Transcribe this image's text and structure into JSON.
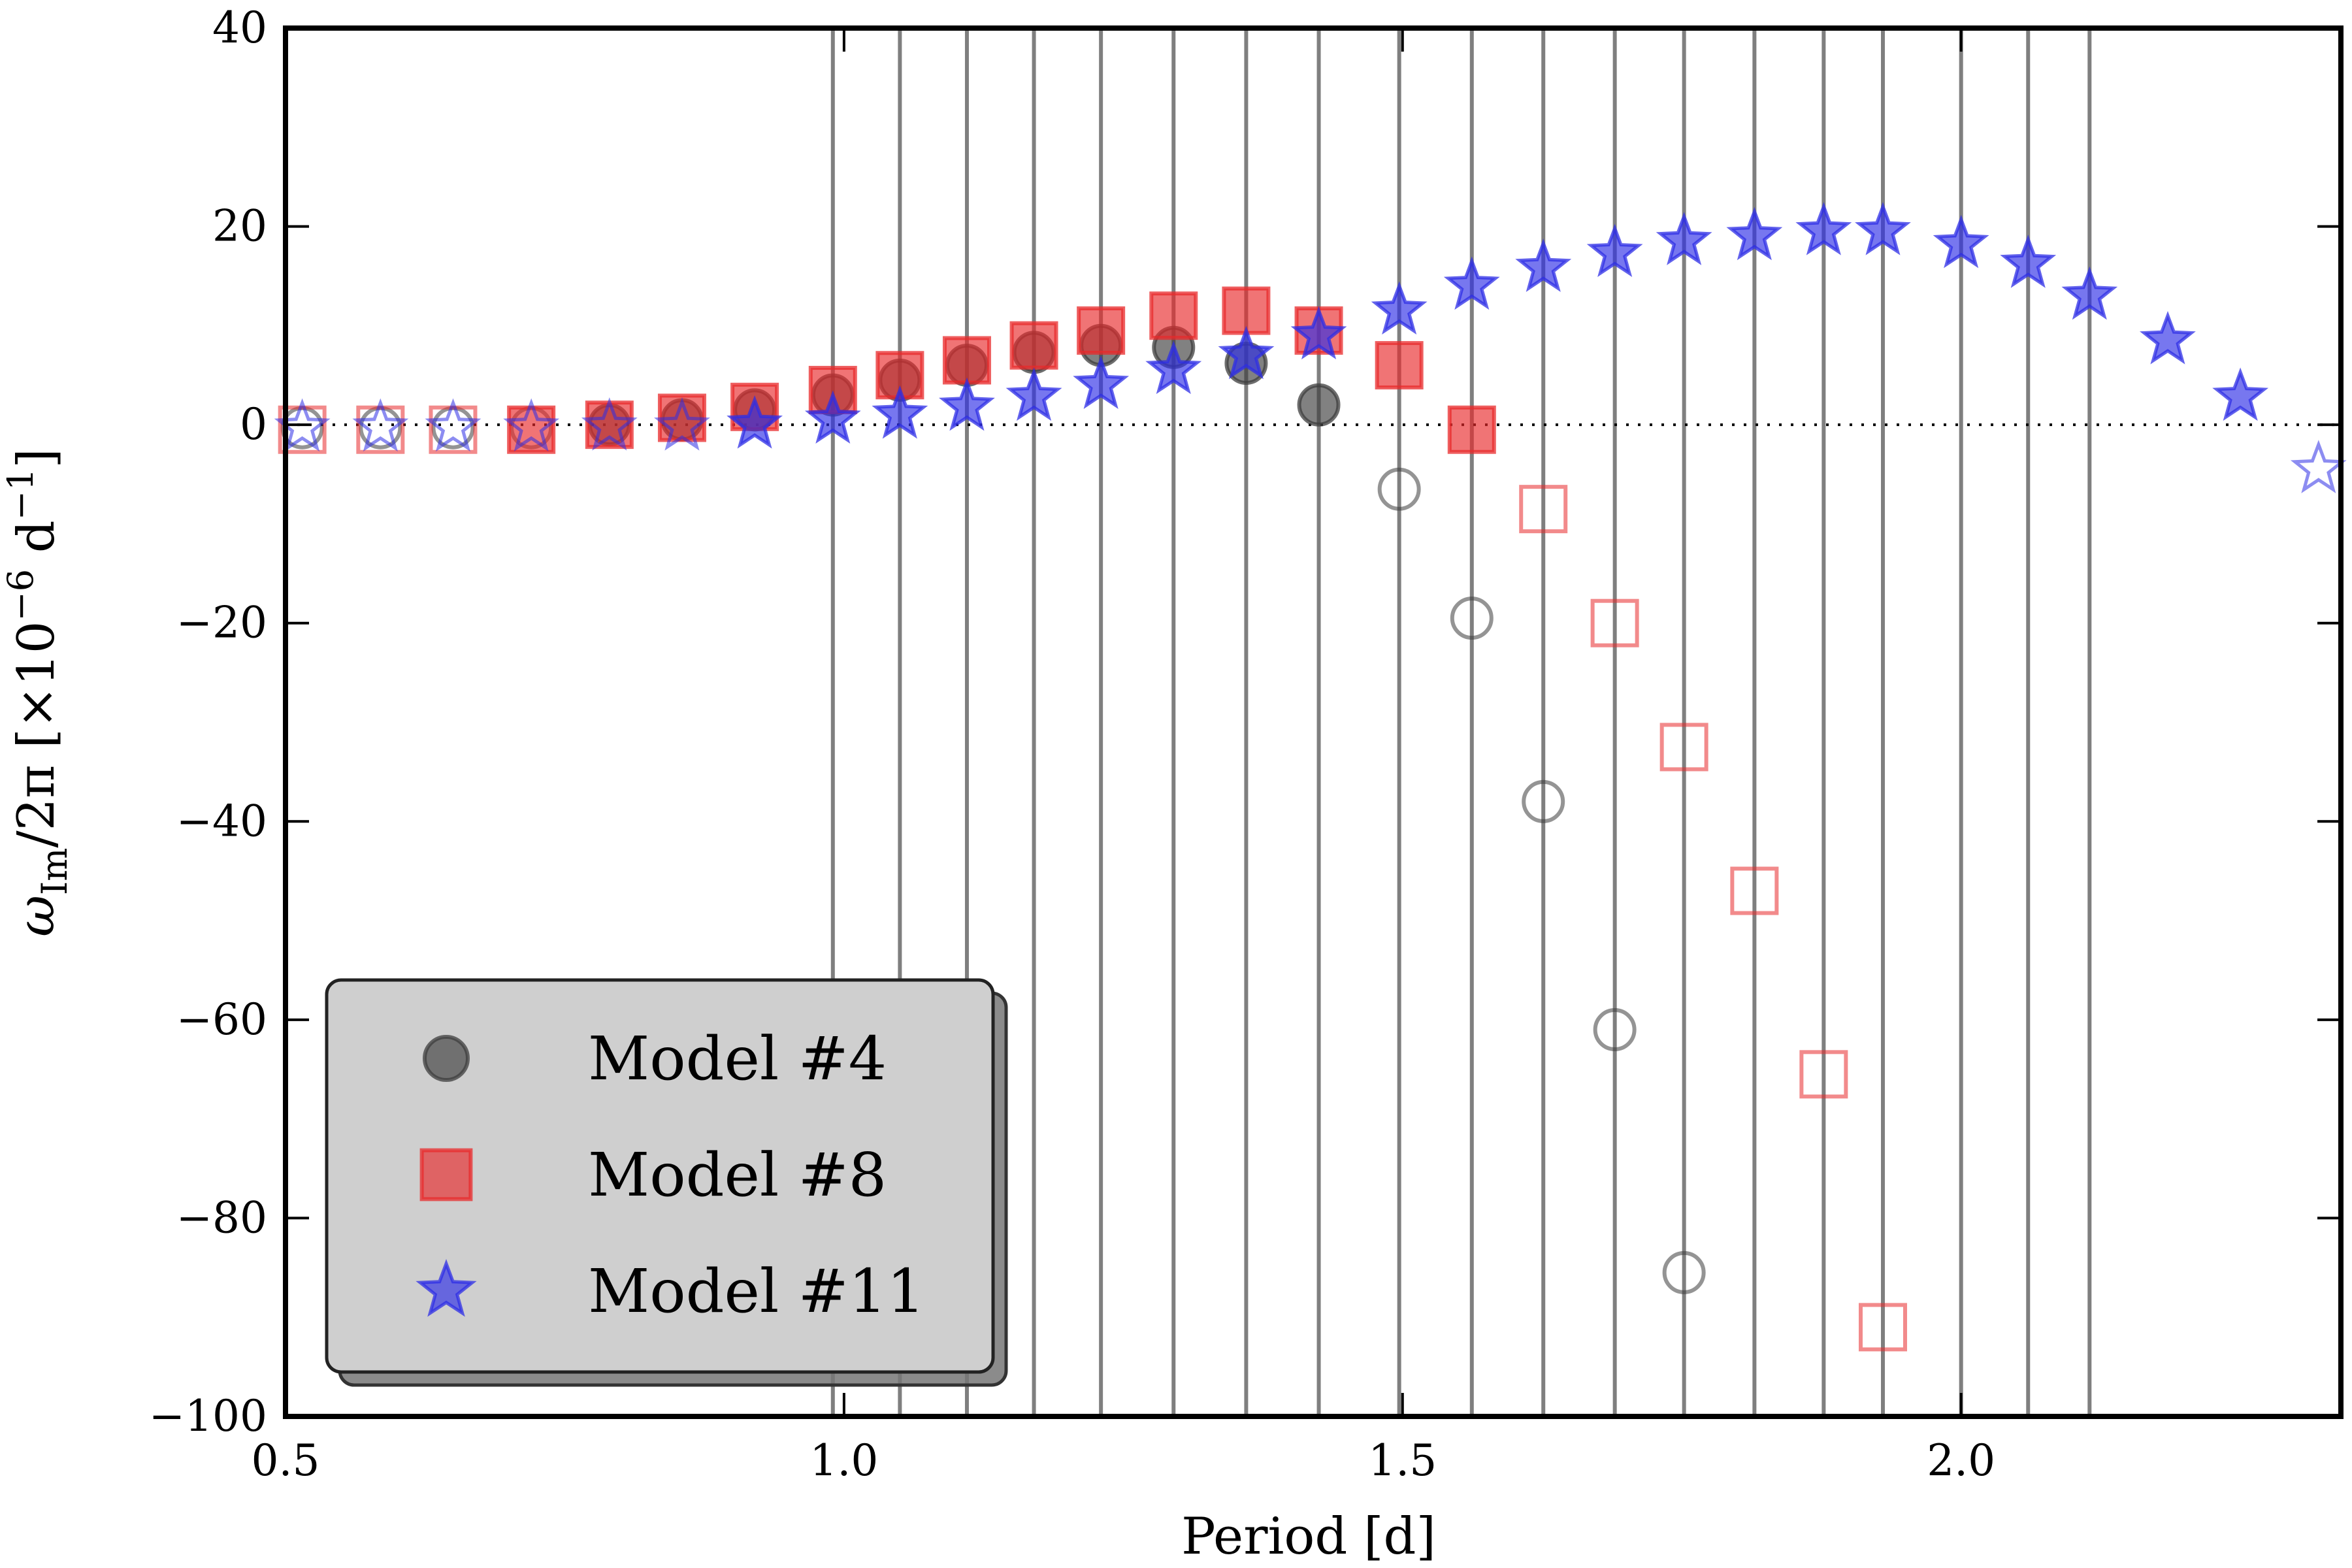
{
  "chart_data": {
    "type": "scatter",
    "title": "",
    "xlabel": "Period [d]",
    "ylabel": {
      "main": "ω",
      "sub": "Im",
      "after": "/2π [×10",
      "exp": "−6",
      "unit": " d",
      "unit_exp": "−1",
      "close": "]"
    },
    "xlim": [
      0.5,
      2.34
    ],
    "ylim": [
      -100,
      40
    ],
    "xticks": [
      {
        "value": 0.5,
        "label": "0.5"
      },
      {
        "value": 1.0,
        "label": "1.0"
      },
      {
        "value": 1.5,
        "label": "1.5"
      },
      {
        "value": 2.0,
        "label": "2.0"
      }
    ],
    "yticks": [
      {
        "value": 40,
        "label": "40"
      },
      {
        "value": 20,
        "label": "20"
      },
      {
        "value": 0,
        "label": "0"
      },
      {
        "value": -20,
        "label": "−20"
      },
      {
        "value": -40,
        "label": "−40"
      },
      {
        "value": -60,
        "label": "−60"
      },
      {
        "value": -80,
        "label": "−80"
      },
      {
        "value": -100,
        "label": "−100"
      }
    ],
    "zero_line": true,
    "observed_periods": [
      0.99,
      1.05,
      1.11,
      1.17,
      1.23,
      1.295,
      1.36,
      1.425,
      1.497,
      1.562,
      1.626,
      1.69,
      1.752,
      1.815,
      1.877,
      1.93,
      2.0,
      2.06,
      2.115
    ],
    "legend": {
      "position": "lower-left",
      "entries": [
        {
          "label": "Model #4",
          "marker": "circle",
          "color": "#3d3d3d"
        },
        {
          "label": "Model #8",
          "marker": "square",
          "color": "#e8292b"
        },
        {
          "label": "Model #11",
          "marker": "star",
          "color": "#2e2ee6"
        }
      ]
    },
    "series": [
      {
        "name": "Model #4",
        "marker": "circle",
        "color": "#3d3d3d",
        "points": [
          {
            "x": 0.515,
            "y": -0.3,
            "filled": false
          },
          {
            "x": 0.585,
            "y": -0.3,
            "filled": false
          },
          {
            "x": 0.65,
            "y": -0.3,
            "filled": false
          },
          {
            "x": 0.72,
            "y": -0.3,
            "filled": false
          },
          {
            "x": 0.79,
            "y": 0.0,
            "filled": true
          },
          {
            "x": 0.855,
            "y": 0.5,
            "filled": true
          },
          {
            "x": 0.92,
            "y": 1.5,
            "filled": true
          },
          {
            "x": 0.99,
            "y": 3.0,
            "filled": true
          },
          {
            "x": 1.05,
            "y": 4.5,
            "filled": true
          },
          {
            "x": 1.11,
            "y": 6.0,
            "filled": true
          },
          {
            "x": 1.17,
            "y": 7.3,
            "filled": true
          },
          {
            "x": 1.23,
            "y": 8.0,
            "filled": true
          },
          {
            "x": 1.295,
            "y": 7.8,
            "filled": true
          },
          {
            "x": 1.36,
            "y": 6.2,
            "filled": true
          },
          {
            "x": 1.425,
            "y": 2.0,
            "filled": true
          },
          {
            "x": 1.497,
            "y": -6.5,
            "filled": false
          },
          {
            "x": 1.562,
            "y": -19.5,
            "filled": false
          },
          {
            "x": 1.626,
            "y": -38.0,
            "filled": false
          },
          {
            "x": 1.69,
            "y": -61.0,
            "filled": false
          },
          {
            "x": 1.752,
            "y": -85.5,
            "filled": false
          }
        ]
      },
      {
        "name": "Model #8",
        "marker": "square",
        "color": "#e8292b",
        "points": [
          {
            "x": 0.515,
            "y": -0.5,
            "filled": false
          },
          {
            "x": 0.585,
            "y": -0.5,
            "filled": false
          },
          {
            "x": 0.65,
            "y": -0.5,
            "filled": false
          },
          {
            "x": 0.72,
            "y": -0.5,
            "filled": true
          },
          {
            "x": 0.79,
            "y": 0.0,
            "filled": true
          },
          {
            "x": 0.855,
            "y": 0.7,
            "filled": true
          },
          {
            "x": 0.92,
            "y": 1.8,
            "filled": true
          },
          {
            "x": 0.99,
            "y": 3.5,
            "filled": true
          },
          {
            "x": 1.05,
            "y": 5.0,
            "filled": true
          },
          {
            "x": 1.11,
            "y": 6.5,
            "filled": true
          },
          {
            "x": 1.17,
            "y": 8.0,
            "filled": true
          },
          {
            "x": 1.23,
            "y": 9.5,
            "filled": true
          },
          {
            "x": 1.295,
            "y": 11.0,
            "filled": true
          },
          {
            "x": 1.36,
            "y": 11.5,
            "filled": true
          },
          {
            "x": 1.425,
            "y": 9.5,
            "filled": true
          },
          {
            "x": 1.497,
            "y": 6.0,
            "filled": true
          },
          {
            "x": 1.562,
            "y": -0.5,
            "filled": true
          },
          {
            "x": 1.626,
            "y": -8.5,
            "filled": false
          },
          {
            "x": 1.69,
            "y": -20.0,
            "filled": false
          },
          {
            "x": 1.752,
            "y": -32.5,
            "filled": false
          },
          {
            "x": 1.815,
            "y": -47.0,
            "filled": false
          },
          {
            "x": 1.877,
            "y": -65.5,
            "filled": false
          },
          {
            "x": 1.93,
            "y": -91.0,
            "filled": false
          }
        ]
      },
      {
        "name": "Model #11",
        "marker": "star",
        "color": "#2e2ee6",
        "points": [
          {
            "x": 0.515,
            "y": -0.3,
            "filled": false
          },
          {
            "x": 0.585,
            "y": -0.3,
            "filled": false
          },
          {
            "x": 0.65,
            "y": -0.3,
            "filled": false
          },
          {
            "x": 0.72,
            "y": -0.3,
            "filled": false
          },
          {
            "x": 0.79,
            "y": -0.2,
            "filled": false
          },
          {
            "x": 0.855,
            "y": -0.2,
            "filled": false
          },
          {
            "x": 0.92,
            "y": 0.0,
            "filled": true
          },
          {
            "x": 0.99,
            "y": 0.5,
            "filled": true
          },
          {
            "x": 1.05,
            "y": 1.0,
            "filled": true
          },
          {
            "x": 1.11,
            "y": 1.8,
            "filled": true
          },
          {
            "x": 1.17,
            "y": 2.8,
            "filled": true
          },
          {
            "x": 1.23,
            "y": 4.0,
            "filled": true
          },
          {
            "x": 1.295,
            "y": 5.5,
            "filled": true
          },
          {
            "x": 1.36,
            "y": 7.0,
            "filled": true
          },
          {
            "x": 1.425,
            "y": 9.0,
            "filled": true
          },
          {
            "x": 1.497,
            "y": 11.5,
            "filled": true
          },
          {
            "x": 1.562,
            "y": 14.0,
            "filled": true
          },
          {
            "x": 1.626,
            "y": 15.8,
            "filled": true
          },
          {
            "x": 1.69,
            "y": 17.3,
            "filled": true
          },
          {
            "x": 1.752,
            "y": 18.5,
            "filled": true
          },
          {
            "x": 1.815,
            "y": 19.0,
            "filled": true
          },
          {
            "x": 1.877,
            "y": 19.5,
            "filled": true
          },
          {
            "x": 1.93,
            "y": 19.5,
            "filled": true
          },
          {
            "x": 2.0,
            "y": 18.2,
            "filled": true
          },
          {
            "x": 2.06,
            "y": 16.2,
            "filled": true
          },
          {
            "x": 2.115,
            "y": 13.0,
            "filled": true
          },
          {
            "x": 2.185,
            "y": 8.5,
            "filled": true
          },
          {
            "x": 2.25,
            "y": 2.8,
            "filled": true
          },
          {
            "x": 2.32,
            "y": -4.5,
            "filled": false
          }
        ]
      }
    ]
  }
}
